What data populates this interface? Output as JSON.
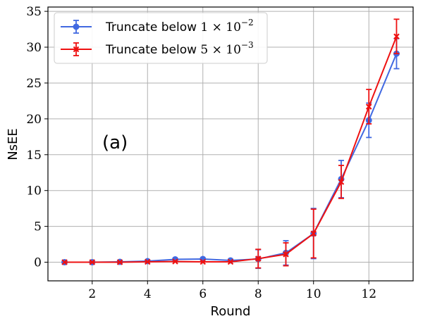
{
  "chart_data": {
    "type": "line",
    "title": "",
    "xlabel": "Round",
    "ylabel": "NsEE",
    "panel_label": "(a)",
    "xlim": [
      0.4,
      13.6
    ],
    "ylim": [
      -2.6,
      35.6
    ],
    "xticks": [
      2,
      4,
      6,
      8,
      10,
      12
    ],
    "yticks": [
      0,
      5,
      10,
      15,
      20,
      25,
      30,
      35
    ],
    "grid": true,
    "legend_position": "top-left",
    "x": [
      1,
      2,
      3,
      4,
      5,
      6,
      7,
      8,
      9,
      10,
      11,
      12,
      13
    ],
    "series": [
      {
        "legend_prefix": "Truncate below ",
        "legend_math": "1 × 10",
        "legend_exp": "−2",
        "color": "#4169e1",
        "marker": "circle",
        "values": [
          0,
          0,
          0.05,
          0.15,
          0.4,
          0.45,
          0.25,
          0.45,
          1.3,
          4.0,
          11.6,
          19.8,
          29.1
        ],
        "errors": [
          0,
          0,
          0,
          0,
          0,
          0,
          0,
          1.3,
          1.7,
          3.5,
          2.6,
          2.4,
          2.1
        ]
      },
      {
        "legend_prefix": "Truncate below ",
        "legend_math": "5 × 10",
        "legend_exp": "−3",
        "color": "#ee1111",
        "marker": "x",
        "values": [
          0,
          0,
          0,
          0.05,
          0.1,
          0.05,
          0.05,
          0.5,
          1.1,
          4.0,
          11.2,
          21.7,
          31.5
        ],
        "errors": [
          0,
          0,
          0,
          0,
          0,
          0,
          0,
          1.3,
          1.6,
          3.4,
          2.3,
          2.4,
          2.4
        ]
      }
    ]
  }
}
